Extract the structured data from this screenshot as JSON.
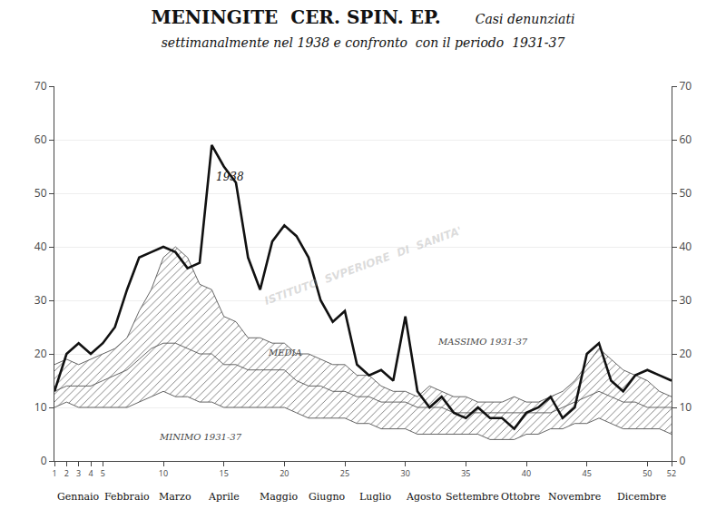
{
  "chart_data": {
    "type": "line",
    "title": "MENINGITE  CER. SPIN. EP.",
    "subtitle": [
      "Casi denunziati",
      "settimanalmente nel 1938 e confronto  con il periodo  1931-37"
    ],
    "x": [
      1,
      2,
      3,
      4,
      5,
      6,
      7,
      8,
      9,
      10,
      11,
      12,
      13,
      14,
      15,
      16,
      17,
      18,
      19,
      20,
      21,
      22,
      23,
      24,
      25,
      26,
      27,
      28,
      29,
      30,
      31,
      32,
      33,
      34,
      35,
      36,
      37,
      38,
      39,
      40,
      41,
      42,
      43,
      44,
      45,
      46,
      47,
      48,
      49,
      50,
      51,
      52
    ],
    "series": [
      {
        "color": "#555555",
        "values": [
          18,
          19,
          18,
          19,
          20,
          21,
          23,
          28,
          32,
          38,
          40,
          38,
          33,
          32,
          27,
          26,
          23,
          23,
          22,
          22,
          20,
          20,
          19,
          18,
          18,
          16,
          16,
          14,
          13,
          13,
          12,
          14,
          13,
          12,
          12,
          11,
          11,
          11,
          12,
          11,
          11,
          12,
          13,
          15,
          18,
          21,
          19,
          17,
          16,
          15,
          13,
          12
        ]
      },
      {
        "color": "#555555",
        "values": [
          13,
          14,
          14,
          14,
          15,
          16,
          17,
          19,
          21,
          22,
          22,
          21,
          20,
          20,
          18,
          18,
          17,
          17,
          17,
          17,
          15,
          14,
          14,
          13,
          13,
          12,
          12,
          11,
          11,
          11,
          10,
          10,
          10,
          9,
          9,
          9,
          9,
          9,
          9,
          9,
          9,
          9,
          10,
          11,
          12,
          13,
          12,
          11,
          11,
          10,
          10,
          10
        ]
      },
      {
        "color": "#555555",
        "values": [
          10,
          11,
          10,
          10,
          10,
          10,
          10,
          11,
          12,
          13,
          12,
          12,
          11,
          11,
          10,
          10,
          10,
          10,
          10,
          10,
          9,
          8,
          8,
          8,
          8,
          7,
          7,
          6,
          6,
          6,
          5,
          5,
          5,
          5,
          5,
          5,
          4,
          4,
          4,
          5,
          5,
          6,
          6,
          7,
          7,
          8,
          7,
          6,
          6,
          6,
          6,
          5
        ]
      },
      {
        "color": "#111111",
        "values": [
          13,
          20,
          22,
          20,
          22,
          25,
          32,
          38,
          39,
          40,
          39,
          36,
          37,
          59,
          55,
          52,
          38,
          32,
          41,
          44,
          42,
          38,
          30,
          26,
          28,
          18,
          16,
          17,
          15,
          27,
          13,
          10,
          12,
          9,
          8,
          10,
          8,
          8,
          6,
          9,
          10,
          12,
          8,
          10,
          20,
          22,
          15,
          13,
          16,
          17,
          16,
          15
        ]
      }
    ],
    "xlim": [
      1,
      52
    ],
    "xticks": [
      1,
      2,
      3,
      4,
      5,
      10,
      15,
      20,
      25,
      30,
      35,
      40,
      45,
      50,
      52
    ],
    "ylim": [
      0,
      70
    ],
    "yticks": [
      0,
      10,
      20,
      30,
      40,
      50,
      60,
      70
    ],
    "y2lim": [
      0,
      70
    ],
    "y2ticks": [
      0,
      10,
      20,
      30,
      40,
      50,
      60,
      70
    ],
    "grid": "y",
    "annotations": [
      {
        "text": "1938",
        "x": 14.2,
        "y": 51.5
      },
      {
        "text": "MEDIA",
        "x": 18.5,
        "y": 19.0
      },
      {
        "text": "MASSIMO 1931-37",
        "x": 32.5,
        "y": 21.0
      },
      {
        "text": "MINIMO 1931-37",
        "x": 9.5,
        "y": 3.2
      },
      {
        "text": "Gennaio",
        "x": 3.0
      },
      {
        "text": "Febbraio",
        "x": 7.0
      },
      {
        "text": "Marzo",
        "x": 11.0
      },
      {
        "text": "Aprile",
        "x": 15.0
      },
      {
        "text": "Maggio",
        "x": 19.5
      },
      {
        "text": "Giugno",
        "x": 23.5
      },
      {
        "text": "Luglio",
        "x": 27.5
      },
      {
        "text": "Agosto",
        "x": 31.5
      },
      {
        "text": "Settembre",
        "x": 35.5
      },
      {
        "text": "Ottobre",
        "x": 39.5
      },
      {
        "text": "Novembre",
        "x": 44.0
      },
      {
        "text": "Dicembre",
        "x": 49.5
      },
      {
        "text": "ISTITUTO  SVPERIORE  DI  SANITA'"
      }
    ]
  }
}
